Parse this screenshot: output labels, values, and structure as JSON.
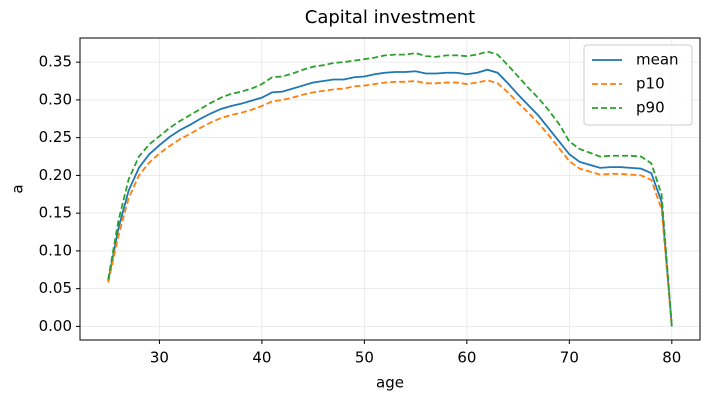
{
  "chart_data": {
    "type": "line",
    "title": "Capital investment",
    "x_label": "age",
    "y_label": "a",
    "x": [
      25,
      26,
      27,
      28,
      29,
      30,
      31,
      32,
      33,
      34,
      35,
      36,
      37,
      38,
      39,
      40,
      41,
      42,
      43,
      44,
      45,
      46,
      47,
      48,
      49,
      50,
      51,
      52,
      53,
      54,
      55,
      56,
      57,
      58,
      59,
      60,
      61,
      62,
      63,
      64,
      65,
      66,
      67,
      68,
      69,
      70,
      71,
      72,
      73,
      74,
      75,
      76,
      77,
      78,
      79,
      80
    ],
    "series": [
      {
        "name": "mean",
        "color": "#1f77b4",
        "style": "solid",
        "values": [
          0.06,
          0.13,
          0.18,
          0.21,
          0.228,
          0.24,
          0.251,
          0.26,
          0.267,
          0.275,
          0.282,
          0.288,
          0.292,
          0.295,
          0.299,
          0.303,
          0.31,
          0.311,
          0.315,
          0.319,
          0.323,
          0.325,
          0.327,
          0.327,
          0.33,
          0.331,
          0.334,
          0.336,
          0.337,
          0.337,
          0.338,
          0.335,
          0.335,
          0.336,
          0.336,
          0.334,
          0.336,
          0.34,
          0.336,
          0.322,
          0.307,
          0.293,
          0.279,
          0.262,
          0.245,
          0.228,
          0.218,
          0.214,
          0.21,
          0.211,
          0.211,
          0.21,
          0.209,
          0.203,
          0.165,
          0.0
        ]
      },
      {
        "name": "p10",
        "color": "#ff7f0e",
        "style": "dashed",
        "values": [
          0.058,
          0.12,
          0.17,
          0.2,
          0.217,
          0.229,
          0.239,
          0.248,
          0.255,
          0.263,
          0.27,
          0.276,
          0.28,
          0.283,
          0.287,
          0.292,
          0.298,
          0.3,
          0.303,
          0.307,
          0.31,
          0.312,
          0.314,
          0.315,
          0.318,
          0.319,
          0.321,
          0.323,
          0.324,
          0.324,
          0.325,
          0.322,
          0.322,
          0.323,
          0.323,
          0.321,
          0.323,
          0.326,
          0.322,
          0.31,
          0.296,
          0.283,
          0.269,
          0.253,
          0.236,
          0.219,
          0.209,
          0.205,
          0.201,
          0.202,
          0.202,
          0.201,
          0.2,
          0.194,
          0.155,
          0.0
        ]
      },
      {
        "name": "p90",
        "color": "#2ca02c",
        "style": "dashed",
        "values": [
          0.062,
          0.14,
          0.195,
          0.225,
          0.241,
          0.252,
          0.263,
          0.272,
          0.28,
          0.288,
          0.296,
          0.303,
          0.308,
          0.311,
          0.315,
          0.321,
          0.33,
          0.331,
          0.335,
          0.34,
          0.344,
          0.346,
          0.349,
          0.35,
          0.352,
          0.354,
          0.356,
          0.359,
          0.36,
          0.36,
          0.362,
          0.358,
          0.357,
          0.359,
          0.359,
          0.358,
          0.36,
          0.364,
          0.36,
          0.346,
          0.331,
          0.316,
          0.302,
          0.286,
          0.268,
          0.245,
          0.235,
          0.23,
          0.225,
          0.226,
          0.226,
          0.226,
          0.225,
          0.216,
          0.175,
          0.0
        ]
      }
    ],
    "xlim": [
      22.25,
      82.75
    ],
    "xticks": [
      30,
      40,
      50,
      60,
      70,
      80
    ],
    "ylim": [
      -0.018,
      0.382
    ],
    "yticks": [
      {
        "value": 0,
        "label": "0.00"
      },
      0.05,
      {
        "value": 0.1,
        "label": "0.10"
      },
      0.15,
      {
        "value": 0.2,
        "label": "0.20"
      },
      0.25,
      {
        "value": 0.3,
        "label": "0.30"
      },
      0.35
    ],
    "grid": true,
    "legend": "upper right"
  }
}
